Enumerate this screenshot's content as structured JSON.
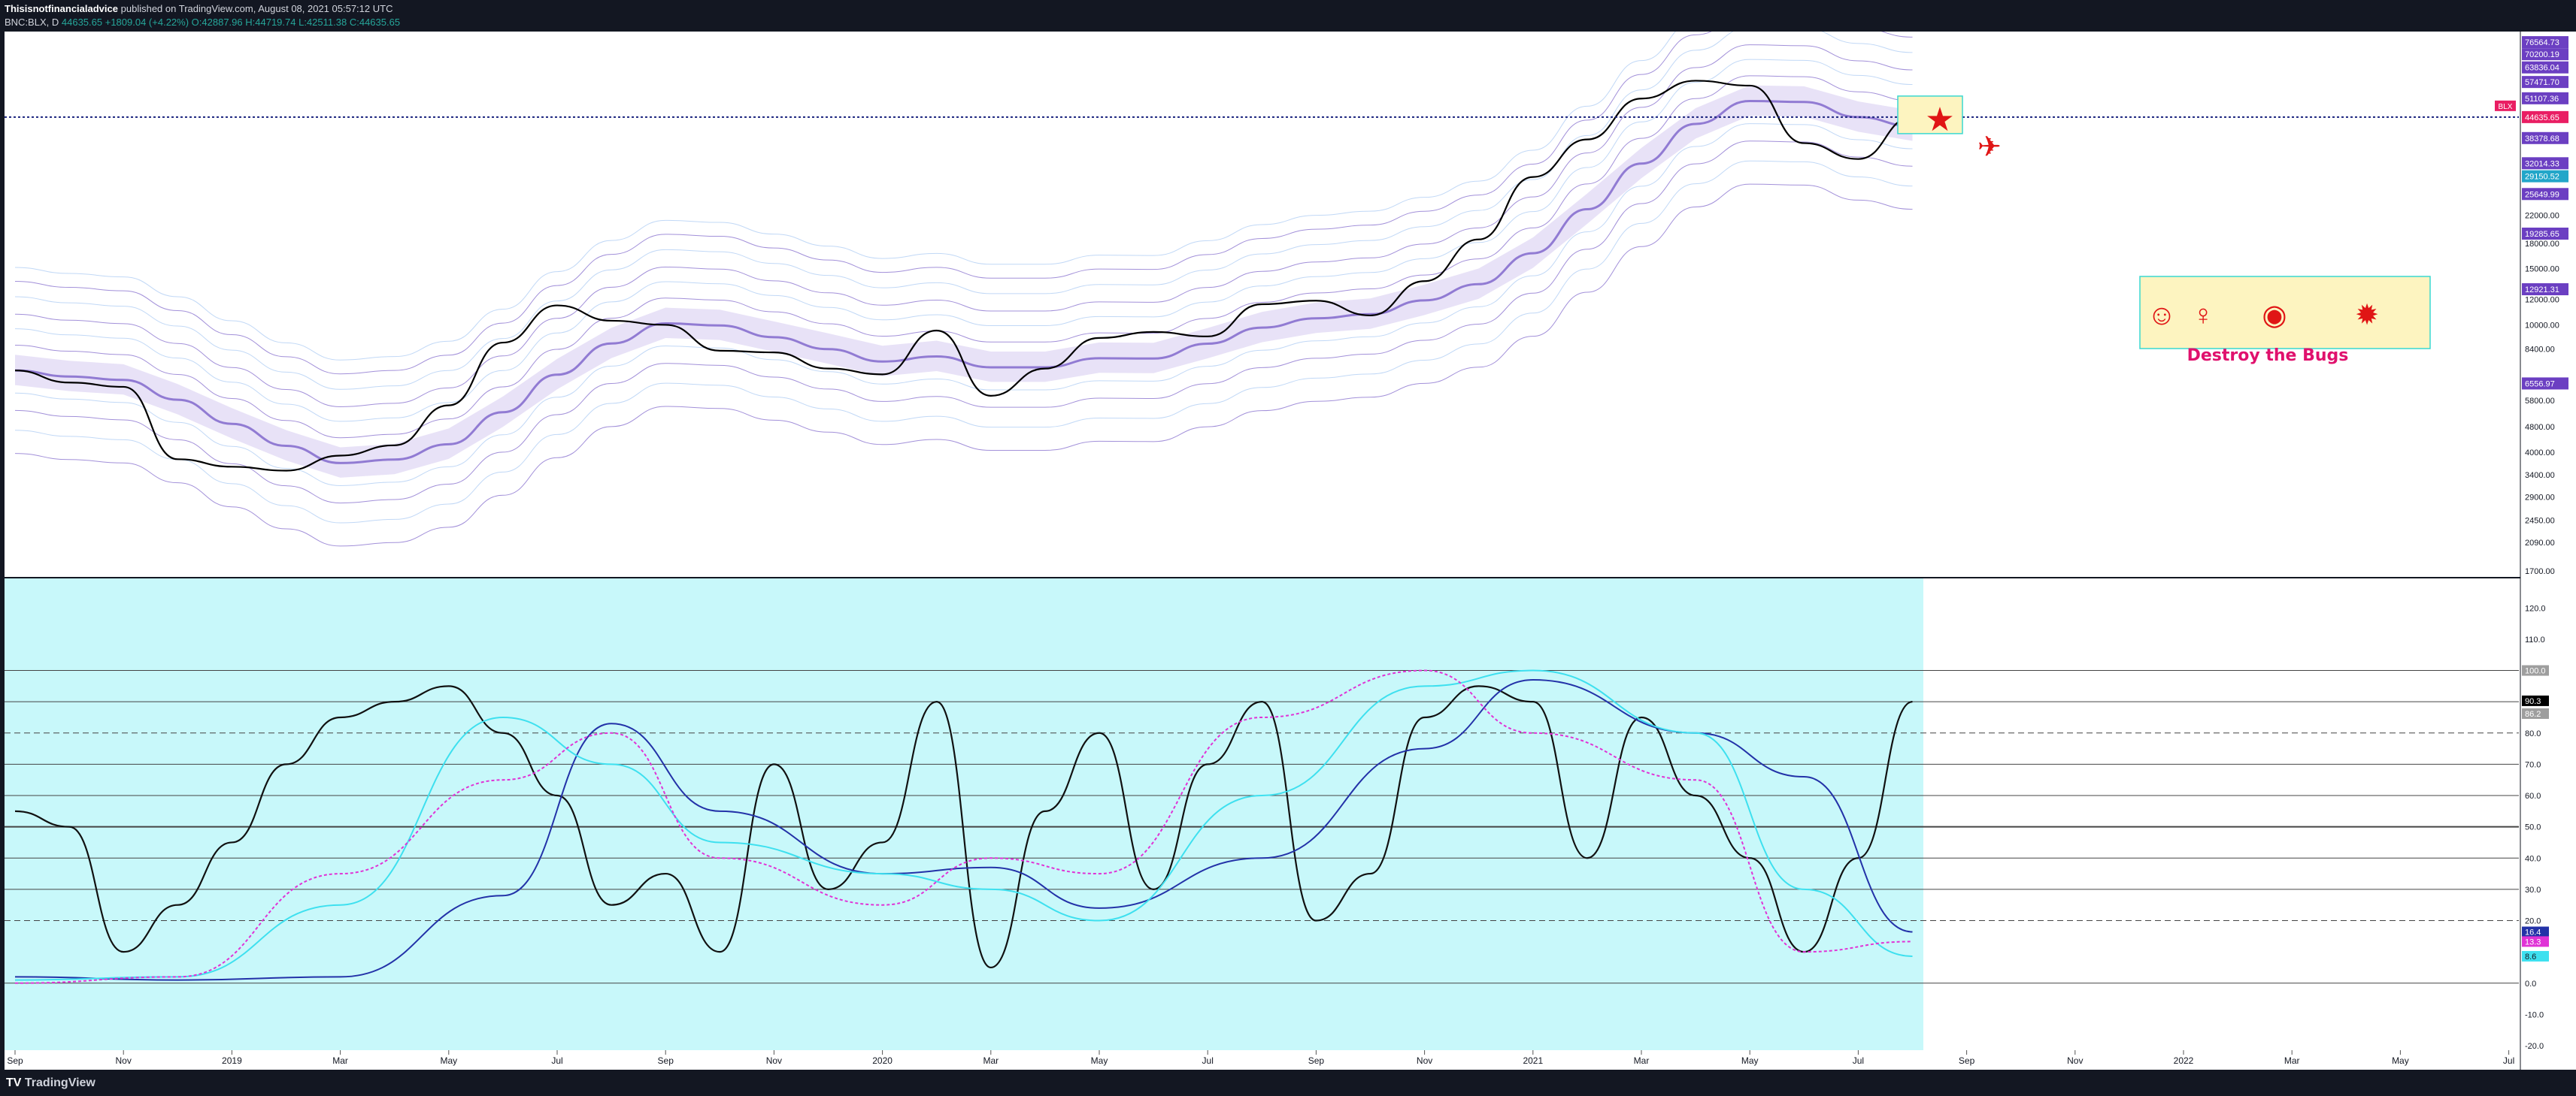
{
  "header": {
    "author": "Thisisnotfinancialadvice",
    "published": "published on TradingView.com, August 08, 2021 05:57:12 UTC",
    "symbol": "BNC:BLX, D",
    "last": "44635.65",
    "change": "+1809.04 (+4.22%)",
    "open": "O:42887.96",
    "high": "H:44719.74",
    "low": "L:42511.38",
    "close": "C:44635.65"
  },
  "footer": {
    "brand": "TradingView"
  },
  "annotation": {
    "text": "Destroy the Bugs"
  },
  "colors": {
    "background": "#ffffff",
    "frame": "#131722",
    "oscillator_fill": "#c8f8fa",
    "band": "#7b61c9",
    "band_light": "#a7c7f2",
    "price": "#000000",
    "ma_blue": "#2332a8",
    "ma_cyan": "#3ee0ef",
    "magenta": "#e033d6",
    "marker": "#e01515",
    "note_fill": "#fdf4c0",
    "note_border": "#3ad8d0",
    "note_text": "#e0116d"
  },
  "chart_data": [
    {
      "type": "line",
      "title": "",
      "scale": "log",
      "ylim": [
        1700,
        80000
      ],
      "grid": false,
      "series": [
        {
          "name": "BNC:BLX",
          "x": [
            "2018-09",
            "2018-10",
            "2018-11",
            "2018-12",
            "2019-01",
            "2019-02",
            "2019-03",
            "2019-04",
            "2019-05",
            "2019-06",
            "2019-07",
            "2019-08",
            "2019-09",
            "2019-10",
            "2019-11",
            "2019-12",
            "2020-01",
            "2020-02",
            "2020-03",
            "2020-04",
            "2020-05",
            "2020-06",
            "2020-07",
            "2020-08",
            "2020-09",
            "2020-10",
            "2020-11",
            "2020-12",
            "2021-01",
            "2021-02",
            "2021-03",
            "2021-04",
            "2021-05",
            "2021-06",
            "2021-07",
            "2021-08"
          ],
          "values": [
            7200,
            6600,
            6400,
            3800,
            3600,
            3500,
            3900,
            4200,
            5600,
            8800,
            11500,
            10300,
            10000,
            8300,
            8200,
            7300,
            7000,
            9600,
            6000,
            7300,
            9100,
            9500,
            9200,
            11600,
            11900,
            10700,
            13700,
            18500,
            29000,
            38000,
            51000,
            58000,
            56000,
            37000,
            33000,
            44635.65
          ]
        }
      ],
      "right_axis_ticks": [
        "76564.73",
        "70200.19",
        "63836.04",
        "57471.70",
        "51107.36",
        "44635.65",
        "38378.68",
        "32014.33",
        "29150.52",
        "25649.99",
        "22000.00",
        "19285.65",
        "18000.00",
        "15000.00",
        "12921.31",
        "12000.00",
        "10000.00",
        "8400.00",
        "6556.97",
        "5800.00",
        "4800.00",
        "4000.00",
        "3400.00",
        "2900.00",
        "2450.00",
        "2090.00",
        "1700.00"
      ],
      "symbol_tag": "BLX",
      "last_value": "44635.65"
    },
    {
      "type": "line",
      "title": "",
      "ylim": [
        -20,
        128
      ],
      "grid": false,
      "levels": [
        0,
        20,
        30,
        40,
        50,
        60,
        70,
        80,
        90,
        100
      ],
      "right_axis_ticks": [
        "120.0",
        "110.0",
        "100.0",
        "90.3",
        "86.2",
        "80.0",
        "70.0",
        "60.0",
        "50.0",
        "40.0",
        "30.0",
        "20.0",
        "16.4",
        "13.3",
        "8.6",
        "0.0",
        "-10.0",
        "-20.0"
      ],
      "series": [
        {
          "name": "oscillator",
          "x": [
            "2018-09",
            "2018-10",
            "2018-11",
            "2018-12",
            "2019-01",
            "2019-02",
            "2019-03",
            "2019-04",
            "2019-05",
            "2019-06",
            "2019-07",
            "2019-08",
            "2019-09",
            "2019-10",
            "2019-11",
            "2019-12",
            "2020-01",
            "2020-02",
            "2020-03",
            "2020-04",
            "2020-05",
            "2020-06",
            "2020-07",
            "2020-08",
            "2020-09",
            "2020-10",
            "2020-11",
            "2020-12",
            "2021-01",
            "2021-02",
            "2021-03",
            "2021-04",
            "2021-05",
            "2021-06",
            "2021-07",
            "2021-08"
          ],
          "values": [
            55,
            50,
            10,
            25,
            45,
            70,
            85,
            90,
            95,
            80,
            60,
            25,
            35,
            10,
            70,
            30,
            45,
            90,
            5,
            55,
            80,
            30,
            70,
            90,
            20,
            35,
            85,
            95,
            90,
            40,
            85,
            60,
            40,
            10,
            40,
            90
          ]
        },
        {
          "name": "slow-ma",
          "x": [
            "2018-09",
            "2018-12",
            "2019-03",
            "2019-06",
            "2019-08",
            "2019-10",
            "2020-01",
            "2020-03",
            "2020-05",
            "2020-08",
            "2020-11",
            "2021-01",
            "2021-04",
            "2021-06",
            "2021-08"
          ],
          "values": [
            2,
            1,
            2,
            28,
            83,
            55,
            35,
            37,
            24,
            40,
            75,
            97,
            80,
            66,
            16.4
          ]
        },
        {
          "name": "mid-ma",
          "x": [
            "2018-09",
            "2018-12",
            "2019-03",
            "2019-06",
            "2019-08",
            "2019-10",
            "2020-01",
            "2020-03",
            "2020-05",
            "2020-08",
            "2020-11",
            "2021-01",
            "2021-04",
            "2021-06",
            "2021-08"
          ],
          "values": [
            1,
            2,
            25,
            85,
            70,
            45,
            35,
            30,
            20,
            60,
            95,
            100,
            80,
            30,
            8.6
          ]
        },
        {
          "name": "pink",
          "x": [
            "2018-09",
            "2018-12",
            "2019-03",
            "2019-06",
            "2019-08",
            "2019-10",
            "2020-01",
            "2020-03",
            "2020-05",
            "2020-08",
            "2020-11",
            "2021-01",
            "2021-04",
            "2021-06",
            "2021-08"
          ],
          "values": [
            0,
            2,
            35,
            65,
            80,
            40,
            25,
            40,
            35,
            85,
            100,
            80,
            65,
            10,
            13.3
          ]
        }
      ]
    }
  ],
  "time_axis": [
    "Sep",
    "Nov",
    "2019",
    "Mar",
    "May",
    "Jul",
    "Sep",
    "Nov",
    "2020",
    "Mar",
    "May",
    "Jul",
    "Sep",
    "Nov",
    "2021",
    "Mar",
    "May",
    "Jul",
    "Sep",
    "Nov",
    "2022",
    "Mar",
    "May",
    "Jul"
  ]
}
